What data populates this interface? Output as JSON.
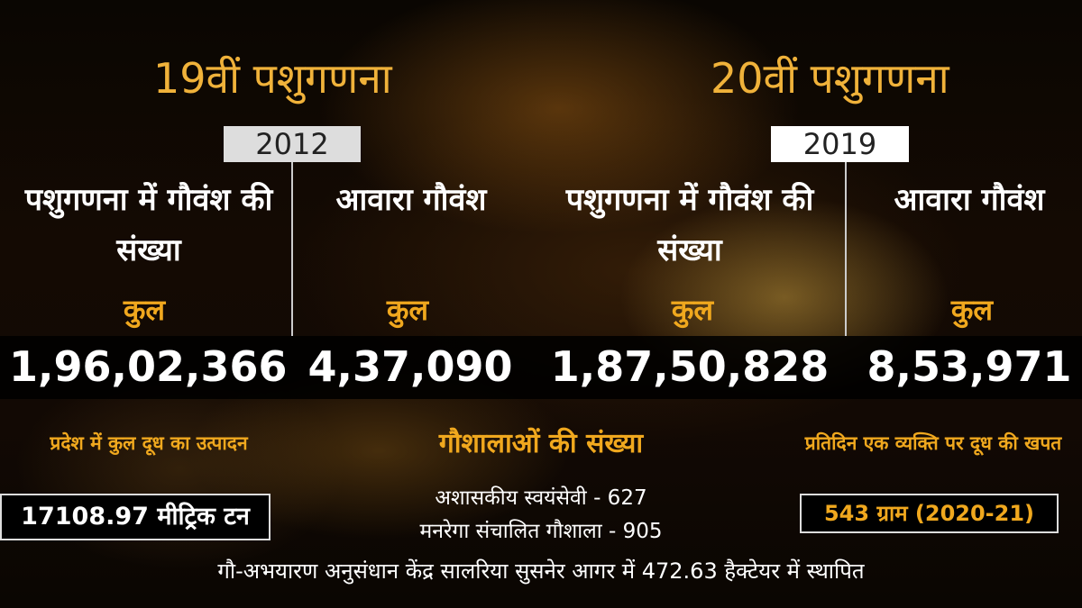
{
  "census19": {
    "title": "19वीं पशुगणना",
    "year": "2012",
    "col1_label": "पशुगणना में गौवंश की संख्या",
    "col2_label": "आवारा गौवंश",
    "total_label": "कुल",
    "col1_value": "1,96,02,366",
    "col2_value": "4,37,090"
  },
  "census20": {
    "title": "20वीं पशुगणना",
    "year": "2019",
    "col1_label": "पशुगणना में गौवंश की संख्या",
    "col2_label": "आवारा गौवंश",
    "total_label": "कुल",
    "col1_value": "1,87,50,828",
    "col2_value": "8,53,971"
  },
  "milk_production": {
    "label": "प्रदेश में कुल दूध का उत्पादन",
    "value": "17108.97 मीट्रिक टन"
  },
  "gaushala": {
    "title": "गौशालाओं की संख्या",
    "line1": "अशासकीय स्वयंसेवी - 627",
    "line2": "मनरेगा संचालित गौशाला - 905"
  },
  "milk_consumption": {
    "label": "प्रतिदिन एक व्यक्ति पर दूध की खपत",
    "value": "543 ग्राम (2020-21)"
  },
  "footer": "गौ-अभयारण अनुसंधान केंद्र सालरिया सुसनेर आगर में 472.63 हैक्टेयर में स्थापित"
}
